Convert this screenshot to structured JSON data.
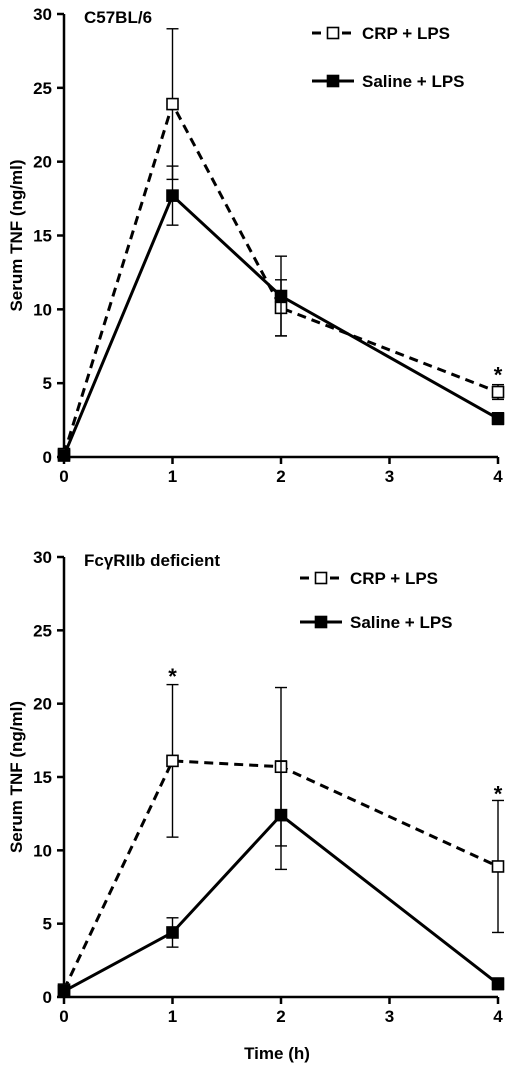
{
  "chart_data": [
    {
      "type": "line",
      "title": "C57BL/6",
      "xlabel": "",
      "ylabel": "Serum TNF (ng/ml)",
      "xlim": [
        0,
        4
      ],
      "ylim": [
        0,
        30
      ],
      "xticks": [
        "0",
        "1",
        "2",
        "3",
        "4"
      ],
      "yticks": [
        "0",
        "5",
        "10",
        "15",
        "20",
        "25",
        "30"
      ],
      "legend_position": "top-right",
      "grid": false,
      "series": [
        {
          "name": "CRP + LPS",
          "style": "dashed",
          "marker": "open-square",
          "x": [
            0,
            1,
            2,
            4
          ],
          "y": [
            0.2,
            23.9,
            10.1,
            4.4
          ],
          "error": [
            0.2,
            5.1,
            1.9,
            0.5
          ]
        },
        {
          "name": "Saline + LPS",
          "style": "solid",
          "marker": "filled-square",
          "x": [
            0,
            1,
            2,
            4
          ],
          "y": [
            0.1,
            17.7,
            10.9,
            2.6
          ],
          "error": [
            0.1,
            2.0,
            2.7,
            0.4
          ]
        }
      ],
      "annotations": [
        {
          "text": "*",
          "x": 4,
          "y": 6.0
        }
      ]
    },
    {
      "type": "line",
      "title": "FcγRIIb deficient",
      "xlabel": "Time (h)",
      "ylabel": "Serum TNF (ng/ml)",
      "xlim": [
        0,
        4
      ],
      "ylim": [
        0,
        30
      ],
      "xticks": [
        "0",
        "1",
        "2",
        "3",
        "4"
      ],
      "yticks": [
        "0",
        "5",
        "10",
        "15",
        "20",
        "25",
        "30"
      ],
      "legend_position": "top-right",
      "grid": false,
      "series": [
        {
          "name": "CRP + LPS",
          "style": "dashed",
          "marker": "open-square",
          "x": [
            0,
            1,
            2,
            4
          ],
          "y": [
            0.5,
            16.1,
            15.7,
            8.9
          ],
          "error": [
            0.2,
            5.2,
            5.4,
            4.5
          ]
        },
        {
          "name": "Saline + LPS",
          "style": "solid",
          "marker": "filled-square",
          "x": [
            0,
            1,
            2,
            4
          ],
          "y": [
            0.4,
            4.4,
            12.4,
            0.9
          ],
          "error": [
            0.2,
            1.0,
            3.7,
            0.4
          ]
        }
      ],
      "annotations": [
        {
          "text": "*",
          "x": 1,
          "y": 22.3
        },
        {
          "text": "*",
          "x": 4,
          "y": 14.3
        }
      ]
    }
  ]
}
